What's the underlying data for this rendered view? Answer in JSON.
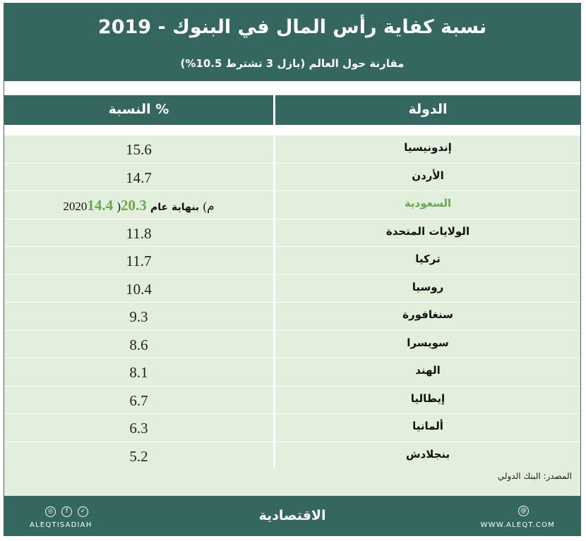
{
  "header": {
    "title": "نسبة كفاية رأس المال في البنوك - 2019",
    "subtitle": "مقارنة حول العالم (بازل 3 تشترط 10.5%)"
  },
  "columns": {
    "country": "الدولة",
    "ratio": "النسبة %"
  },
  "rows": [
    {
      "country": "إندونيسيا",
      "value": "15.6"
    },
    {
      "country": "الأردن",
      "value": "14.7"
    },
    {
      "country": "السعودية",
      "value": "14.4",
      "note_open": "(",
      "note_value": "20.3",
      "note_text": "بنهاية عام",
      "note_year": "2020م)"
    },
    {
      "country": "الولايات المتحدة",
      "value": "11.8"
    },
    {
      "country": "تركيا",
      "value": "11.7"
    },
    {
      "country": "روسيا",
      "value": "10.4"
    },
    {
      "country": "سنغافورة",
      "value": "9.3"
    },
    {
      "country": "سويسرا",
      "value": "8.6"
    },
    {
      "country": "الهند",
      "value": "8.1"
    },
    {
      "country": "إيطاليا",
      "value": "6.7"
    },
    {
      "country": "ألمانيا",
      "value": "6.3"
    },
    {
      "country": "بنجلادش",
      "value": "5.2"
    }
  ],
  "source": "المصدر:  البنك الدولي",
  "footer": {
    "brand": "الاقتصادية",
    "handle": "ALEQTISADIAH",
    "site": "WWW.ALEQT.COM"
  },
  "colors": {
    "header_bg": "#33675f",
    "row_bg": "#e2efdc",
    "highlight": "#6aa84f"
  },
  "chart_data": {
    "type": "table",
    "title": "نسبة كفاية رأس المال في البنوك - 2019",
    "subtitle": "مقارنة حول العالم (بازل 3 تشترط 10.5%)",
    "columns": [
      "الدولة",
      "النسبة %"
    ],
    "categories": [
      "إندونيسيا",
      "الأردن",
      "السعودية",
      "الولايات المتحدة",
      "تركيا",
      "روسيا",
      "سنغافورة",
      "سويسرا",
      "الهند",
      "إيطاليا",
      "ألمانيا",
      "بنجلادش"
    ],
    "values": [
      15.6,
      14.7,
      14.4,
      11.8,
      11.7,
      10.4,
      9.3,
      8.6,
      8.1,
      6.7,
      6.3,
      5.2
    ],
    "annotations": [
      {
        "category": "السعودية",
        "value_end_2020": 20.3
      }
    ]
  }
}
